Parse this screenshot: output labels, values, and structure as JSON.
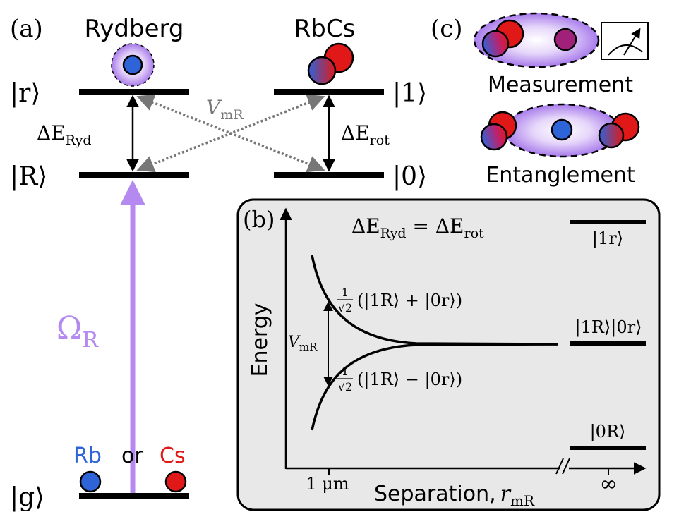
{
  "panel_a": {
    "label": "(a)",
    "rydberg_title": "Rydberg",
    "rbcs_title": "RbCs",
    "level_r": "|r⟩",
    "level_R": "|R⟩",
    "level_g": "|g⟩",
    "level_1": "|1⟩",
    "level_0": "|0⟩",
    "delta_ryd": {
      "main": "ΔE",
      "sub": "Ryd"
    },
    "delta_rot": {
      "main": "ΔE",
      "sub": "rot"
    },
    "coupling": {
      "main": "V",
      "sub": "mR"
    },
    "omega": {
      "main": "Ω",
      "sub": "R"
    },
    "atom_rb": "Rb",
    "atom_or": "or",
    "atom_cs": "Cs"
  },
  "panel_b": {
    "label": "(b)",
    "condition": "ΔE_Ryd = ΔE_rot",
    "condition_parts": {
      "lhs": "ΔE",
      "lhs_sub": "Ryd",
      "eq": " = ",
      "rhs": "ΔE",
      "rhs_sub": "rot"
    },
    "y_axis_label": "Energy",
    "x_axis_label": "Separation,",
    "x_axis_symbol": {
      "main": "r",
      "sub": "mR"
    },
    "x_tick": "1 μm",
    "x_infinity": "∞",
    "splitting": {
      "main": "V",
      "sub": "mR"
    },
    "upper_state": "(|1R⟩ + |0r⟩)",
    "lower_state": "(|1R⟩ − |0r⟩)",
    "prefactor": {
      "num": "1",
      "den": "√2"
    },
    "level_1r": "|1r⟩",
    "level_1R0r": "|1R⟩|0r⟩",
    "level_0R": "|0R⟩"
  },
  "panel_c": {
    "label": "(c)",
    "measurement": "Measurement",
    "entanglement": "Entanglement"
  },
  "colors": {
    "rb_blue": "#2f63d8",
    "cs_red": "#e01818",
    "laser_purple": "#b48af0",
    "arrow_gray": "#777777",
    "panel_b_bg": "#e8e8e8"
  }
}
